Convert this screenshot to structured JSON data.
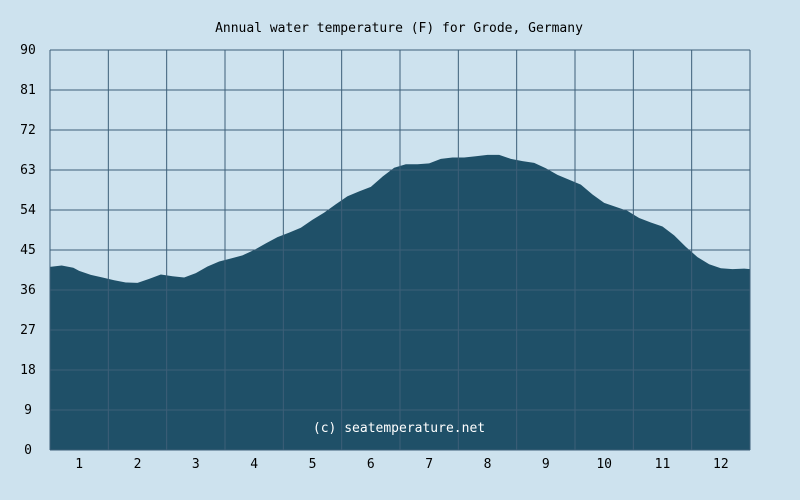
{
  "chart_data": {
    "type": "area",
    "title": "Annual water temperature (F) for Grode, Germany",
    "xlabel": "",
    "ylabel": "",
    "x_tick_labels": [
      "1",
      "2",
      "3",
      "4",
      "5",
      "6",
      "7",
      "8",
      "9",
      "10",
      "11",
      "12"
    ],
    "y_tick_labels": [
      "0",
      "9",
      "18",
      "27",
      "36",
      "45",
      "54",
      "63",
      "72",
      "81",
      "90"
    ],
    "xlim": [
      0.5,
      12.5
    ],
    "ylim": [
      0,
      90
    ],
    "grid": true,
    "watermark": "(c) seatemperature.net",
    "colors": {
      "background": "#cde2ee",
      "area_fill": "#1f5068",
      "grid": "#3d5f78"
    },
    "series": [
      {
        "x": [
          0.5,
          0.7,
          0.9,
          1.0,
          1.2,
          1.4,
          1.6,
          1.8,
          2.0,
          2.2,
          2.4,
          2.6,
          2.8,
          3.0,
          3.2,
          3.4,
          3.6,
          3.8,
          4.0,
          4.2,
          4.4,
          4.6,
          4.8,
          5.0,
          5.2,
          5.4,
          5.6,
          5.8,
          6.0,
          6.2,
          6.4,
          6.6,
          6.8,
          7.0,
          7.2,
          7.4,
          7.6,
          7.8,
          8.0,
          8.2,
          8.4,
          8.6,
          8.8,
          9.0,
          9.2,
          9.4,
          9.6,
          9.8,
          10.0,
          10.2,
          10.4,
          10.6,
          10.8,
          11.0,
          11.2,
          11.4,
          11.6,
          11.8,
          12.0,
          12.2,
          12.4,
          12.5
        ],
        "values": [
          41.2,
          41.5,
          41.0,
          40.3,
          39.4,
          38.8,
          38.2,
          37.7,
          37.6,
          38.5,
          39.5,
          39.1,
          38.8,
          39.8,
          41.3,
          42.4,
          43.1,
          43.8,
          45.0,
          46.5,
          47.9,
          48.9,
          50.0,
          51.8,
          53.4,
          55.3,
          57.1,
          58.2,
          59.2,
          61.5,
          63.5,
          64.3,
          64.3,
          64.5,
          65.5,
          65.8,
          65.8,
          66.1,
          66.4,
          66.4,
          65.5,
          65.0,
          64.6,
          63.4,
          61.9,
          60.8,
          59.7,
          57.5,
          55.6,
          54.7,
          53.8,
          52.2,
          51.2,
          50.3,
          48.3,
          45.7,
          43.4,
          41.8,
          40.9,
          40.7,
          40.8,
          40.7
        ]
      }
    ]
  }
}
